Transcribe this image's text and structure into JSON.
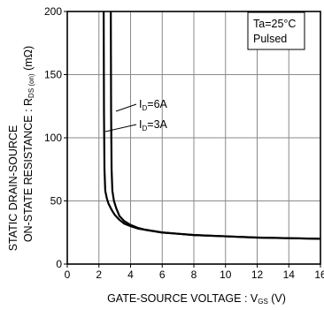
{
  "chart_data": {
    "type": "line",
    "xlabel": {
      "main": "GATE-SOURCE VOLTAGE : V",
      "sub": "GS",
      "unit": " (V)"
    },
    "ylabel": {
      "line1": "STATIC DRAIN-SOURCE",
      "line2_main": "ON-STATE RESISTANCE : R",
      "line2_sub": "DS (on)",
      "line2_unit": " (mΩ)"
    },
    "xlim": [
      0,
      16
    ],
    "ylim": [
      0,
      200
    ],
    "x_ticks": [
      0,
      2,
      4,
      6,
      8,
      10,
      12,
      14,
      16
    ],
    "x_tick_labels": [
      "0",
      "2",
      "4",
      "6",
      "8",
      "10",
      "12",
      "14",
      "16"
    ],
    "y_ticks": [
      0,
      50,
      100,
      150,
      200
    ],
    "y_tick_labels": [
      "0",
      "50",
      "100",
      "150",
      "200"
    ],
    "grid": true,
    "conditions": [
      "Ta=25°C",
      "Pulsed"
    ],
    "series": [
      {
        "name": "ID=3A",
        "label_main": "I",
        "label_sub": "D",
        "label_rest": "=3A",
        "x": [
          2.3,
          2.32,
          2.35,
          2.4,
          2.5,
          2.6,
          2.8,
          3.0,
          3.3,
          3.6,
          4.0,
          4.5,
          5.0,
          6.0,
          7.0,
          8.0,
          10.0,
          12.0,
          14.0,
          16.0
        ],
        "y": [
          200,
          120,
          75,
          58,
          52,
          48,
          43,
          39,
          35,
          32,
          30,
          28,
          27,
          25,
          24,
          23,
          22,
          21,
          20.5,
          20
        ]
      },
      {
        "name": "ID=6A",
        "label_main": "I",
        "label_sub": "D",
        "label_rest": "=6A",
        "x": [
          2.75,
          2.77,
          2.8,
          2.85,
          2.95,
          3.1,
          3.3,
          3.6,
          4.0,
          4.5,
          5.0,
          6.0,
          7.0,
          8.0,
          10.0,
          12.0,
          14.0,
          16.0
        ],
        "y": [
          200,
          120,
          75,
          58,
          50,
          44,
          38,
          34,
          31,
          28.5,
          27,
          25,
          24,
          23,
          22,
          21,
          20.5,
          20
        ]
      }
    ]
  }
}
